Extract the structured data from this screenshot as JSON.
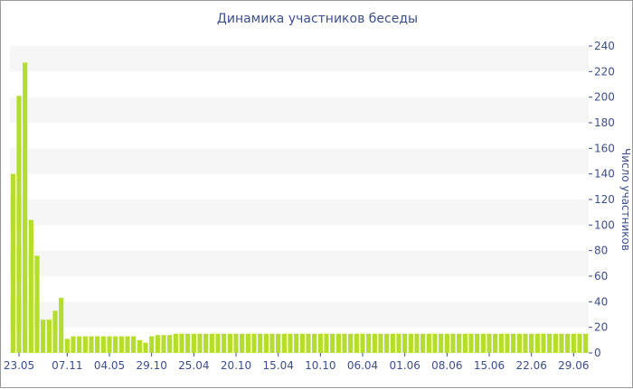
{
  "chart_data": {
    "type": "bar",
    "title": "Динамика участников беседы",
    "xlabel": "",
    "ylabel": "Число участников",
    "ylim": [
      0,
      240
    ],
    "yticks": [
      0,
      20,
      40,
      60,
      80,
      100,
      120,
      140,
      160,
      180,
      200,
      220,
      240
    ],
    "grid": "horizontal alternating bands",
    "bar_color": "#b5de2b",
    "band_color": "#f6f6f6",
    "text_color": "#3c4e8c",
    "x_tick_labels": [
      {
        "label": "23.05",
        "bar_index": 1
      },
      {
        "label": "07.11",
        "bar_index": 9
      },
      {
        "label": "04.05",
        "bar_index": 16
      },
      {
        "label": "29.10",
        "bar_index": 23
      },
      {
        "label": "25.04",
        "bar_index": 30
      },
      {
        "label": "20.10",
        "bar_index": 37
      },
      {
        "label": "15.04",
        "bar_index": 44
      },
      {
        "label": "10.10",
        "bar_index": 51
      },
      {
        "label": "06.04",
        "bar_index": 58
      },
      {
        "label": "01.06",
        "bar_index": 65
      },
      {
        "label": "08.06",
        "bar_index": 72
      },
      {
        "label": "15.06",
        "bar_index": 79
      },
      {
        "label": "22.06",
        "bar_index": 86
      },
      {
        "label": "29.06",
        "bar_index": 93
      }
    ],
    "values": [
      140,
      201,
      227,
      104,
      76,
      26,
      26,
      33,
      43,
      11,
      13,
      13,
      13,
      13,
      13,
      13,
      13,
      13,
      13,
      13,
      13,
      10,
      8,
      13,
      14,
      14,
      14,
      15,
      15,
      15,
      15,
      15,
      15,
      15,
      15,
      15,
      15,
      15,
      15,
      15,
      15,
      15,
      15,
      15,
      15,
      15,
      15,
      15,
      15,
      15,
      15,
      15,
      15,
      15,
      15,
      15,
      15,
      15,
      15,
      15,
      15,
      15,
      15,
      15,
      15,
      15,
      15,
      15,
      15,
      15,
      15,
      15,
      15,
      15,
      15,
      15,
      15,
      15,
      15,
      15,
      15,
      15,
      15,
      15,
      15,
      15,
      15,
      15,
      15,
      15,
      15,
      15,
      15,
      15,
      15,
      15
    ]
  }
}
